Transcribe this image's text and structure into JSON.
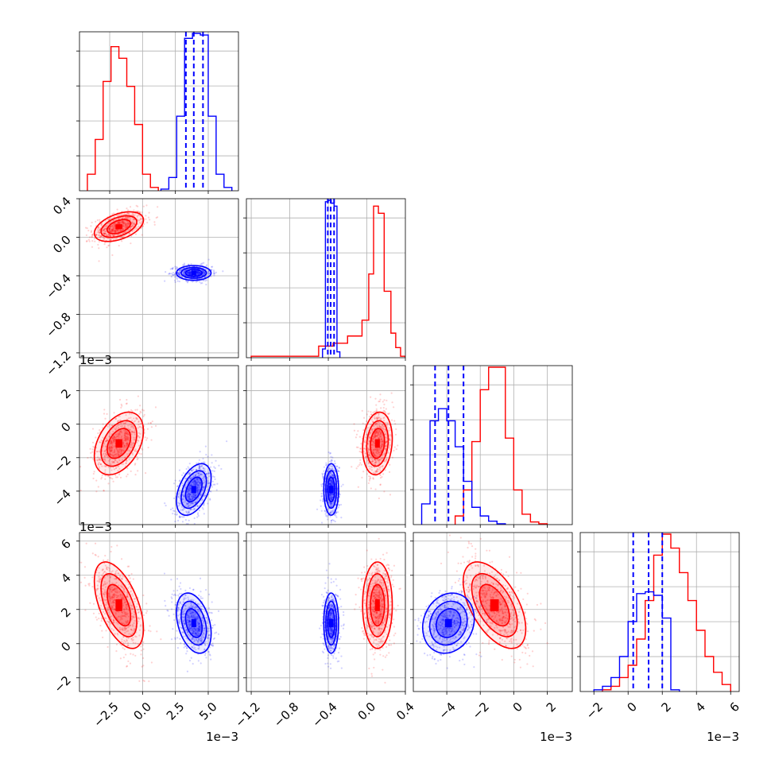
{
  "figure": {
    "type": "corner_plot",
    "background": "#ffffff",
    "grid": true,
    "dashed_lines_color": "#0000ff"
  },
  "chart_data": {
    "type": "corner",
    "n_params": 4,
    "series": [
      {
        "color": "#ff0000",
        "params": [
          {
            "mean": -0.0018,
            "sd": 0.00085
          },
          {
            "mean": 0.11,
            "sd": 0.07
          },
          {
            "mean": -0.00115,
            "sd": 0.00085
          },
          {
            "mean": 0.00225,
            "sd": 0.00115
          }
        ],
        "correlations": [
          [
            0,
            1,
            0.45
          ],
          [
            0,
            2,
            0.4
          ],
          [
            0,
            3,
            -0.55
          ],
          [
            1,
            2,
            0.15
          ],
          [
            1,
            3,
            0.0
          ],
          [
            2,
            3,
            -0.55
          ]
        ],
        "hist1d": [
          {
            "bin_edges": [
              -0.0042,
              -0.0036,
              -0.003,
              -0.0024,
              -0.0018,
              -0.0012,
              -0.0006,
              0.0,
              0.0006,
              0.0012
            ],
            "counts": [
              1.0,
              3.1,
              6.6,
              8.7,
              8.0,
              6.3,
              4.0,
              1.0,
              0.2
            ]
          },
          {
            "bin_edges": [
              -1.2,
              -0.5,
              -0.35,
              -0.2,
              -0.05,
              0.02,
              0.07,
              0.12,
              0.18,
              0.25,
              0.3,
              0.35,
              0.4
            ],
            "counts": [
              0.1,
              0.8,
              1.0,
              1.5,
              2.6,
              5.8,
              10.5,
              10.0,
              4.6,
              1.7,
              0.7,
              0.1
            ]
          },
          {
            "bin_edges": [
              -0.0035,
              -0.003,
              -0.0025,
              -0.002,
              -0.0015,
              -0.001,
              -0.0005,
              0.0,
              0.0005,
              0.001,
              0.0015,
              0.002
            ],
            "counts": [
              0.5,
              2.0,
              4.8,
              7.8,
              9.1,
              9.1,
              5.0,
              2.0,
              0.6,
              0.15,
              0.05
            ]
          },
          {
            "bin_edges": [
              -0.0015,
              -0.001,
              -0.0005,
              0.0,
              0.0005,
              0.001,
              0.0015,
              0.002,
              0.0025,
              0.003,
              0.0035,
              0.004,
              0.0045,
              0.005,
              0.0055,
              0.006
            ],
            "counts": [
              0.1,
              0.3,
              0.8,
              1.5,
              3.0,
              5.2,
              7.8,
              9.0,
              8.2,
              6.8,
              5.2,
              3.5,
              2.0,
              1.1,
              0.4
            ]
          }
        ]
      },
      {
        "color": "#0000ff",
        "params": [
          {
            "mean": 0.0039,
            "sd": 0.0006
          },
          {
            "mean": -0.37,
            "sd": 0.035
          },
          {
            "mean": -0.0039,
            "sd": 0.0007
          },
          {
            "mean": 0.0012,
            "sd": 0.0008
          }
        ],
        "correlations": [
          [
            0,
            1,
            0.0
          ],
          [
            0,
            2,
            0.45
          ],
          [
            0,
            3,
            -0.35
          ],
          [
            1,
            2,
            0.0
          ],
          [
            1,
            3,
            0.0
          ],
          [
            2,
            3,
            0.15
          ]
        ],
        "hist1d": [
          {
            "bin_edges": [
              0.0014,
              0.002,
              0.0026,
              0.0032,
              0.0038,
              0.0044,
              0.005,
              0.0056,
              0.0062,
              0.0068
            ],
            "counts": [
              0.1,
              0.8,
              4.5,
              9.2,
              9.5,
              9.4,
              4.5,
              1.0,
              0.2
            ]
          },
          {
            "bin_edges": [
              -0.46,
              -0.43,
              -0.4,
              -0.37,
              -0.34,
              -0.31,
              -0.28
            ],
            "counts": [
              0.6,
              10.8,
              10.9,
              10.7,
              10.5,
              0.4
            ]
          },
          {
            "bin_edges": [
              -0.0055,
              -0.005,
              -0.0045,
              -0.004,
              -0.0035,
              -0.003,
              -0.0025,
              -0.002,
              -0.0015,
              -0.001,
              -0.0005
            ],
            "counts": [
              1.2,
              6.0,
              6.7,
              6.0,
              4.5,
              2.5,
              1.0,
              0.5,
              0.2,
              0.05
            ]
          },
          {
            "bin_edges": [
              -0.002,
              -0.0015,
              -0.001,
              -0.0005,
              0.0,
              0.0005,
              0.001,
              0.0015,
              0.002,
              0.0025,
              0.003
            ],
            "counts": [
              0.1,
              0.3,
              0.8,
              2.0,
              4.0,
              5.6,
              5.7,
              5.5,
              4.2,
              0.1
            ]
          }
        ],
        "quantiles": [
          [
            0.0033,
            0.0039,
            0.0046
          ],
          [
            -0.405,
            -0.375,
            -0.34
          ],
          [
            -0.0047,
            -0.0039,
            -0.003
          ],
          [
            0.0003,
            0.0012,
            0.002
          ]
        ]
      }
    ],
    "axes": [
      {
        "lim": [
          -0.0048,
          0.0073
        ],
        "ticks": [
          -0.0025,
          0.0,
          0.0025,
          0.005
        ],
        "tick_labels": [
          "−2.5",
          "0.0",
          "2.5",
          "5.0"
        ],
        "offset_label": "1e−3"
      },
      {
        "lim": [
          -1.25,
          0.4
        ],
        "ticks": [
          -1.2,
          -0.8,
          -0.4,
          0.0,
          0.4
        ],
        "tick_labels": [
          "−1.2",
          "−0.8",
          "−0.4",
          "0.0",
          "0.4"
        ],
        "offset_label": ""
      },
      {
        "lim": [
          -0.006,
          0.0035
        ],
        "ticks": [
          -0.004,
          -0.002,
          0.0,
          0.002
        ],
        "tick_labels": [
          "−4",
          "−2",
          "0",
          "2"
        ],
        "offset_label": "1e−3"
      },
      {
        "lim": [
          -0.0028,
          0.0065
        ],
        "ticks": [
          -0.002,
          0.0,
          0.002,
          0.004,
          0.006
        ],
        "tick_labels": [
          "−2",
          "0",
          "2",
          "4",
          "6"
        ],
        "offset_label": "1e−3"
      }
    ]
  }
}
